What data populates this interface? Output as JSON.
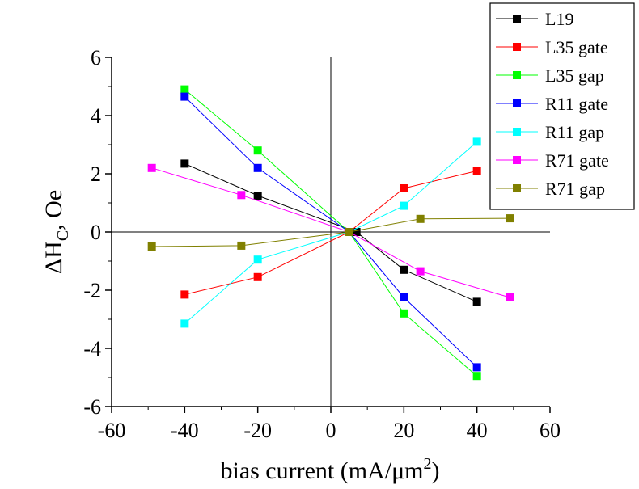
{
  "chart_data": {
    "type": "line",
    "title": "",
    "xlabel": {
      "main": "bias current (mA/μm",
      "sup": "2",
      "tail": ")"
    },
    "ylabel": {
      "delta": "ΔH",
      "sub": "C",
      "tail": ", Oe"
    },
    "xlim": [
      -60,
      60
    ],
    "ylim": [
      -6,
      6
    ],
    "xticks": [
      -60,
      -40,
      -20,
      0,
      20,
      40,
      60
    ],
    "yticks": [
      -6,
      -4,
      -2,
      0,
      2,
      4,
      6
    ],
    "xtick_labels": [
      "-60",
      "-40",
      "-20",
      "0",
      "20",
      "40",
      "60"
    ],
    "ytick_labels": [
      "-6",
      "-4",
      "-2",
      "0",
      "2",
      "4",
      "6"
    ],
    "zero_lines": true,
    "grid": false,
    "legend_position": "top-right",
    "series": [
      {
        "name": "L19",
        "color": "#000000",
        "x": [
          -40,
          -20,
          7,
          20,
          40
        ],
        "y": [
          2.35,
          1.25,
          0.0,
          -1.3,
          -2.4
        ]
      },
      {
        "name": "L35 gate",
        "color": "#ff0000",
        "x": [
          -40,
          -20,
          5,
          20,
          40
        ],
        "y": [
          -2.15,
          -1.55,
          0.0,
          1.5,
          2.1
        ]
      },
      {
        "name": "L35 gap",
        "color": "#00ff00",
        "x": [
          -40,
          -20,
          5,
          20,
          40
        ],
        "y": [
          4.9,
          2.8,
          0.0,
          -2.8,
          -4.95
        ]
      },
      {
        "name": "R11 gate",
        "color": "#0000ff",
        "x": [
          -40,
          -20,
          5,
          20,
          40
        ],
        "y": [
          4.65,
          2.2,
          0.0,
          -2.25,
          -4.65
        ]
      },
      {
        "name": "R11 gap",
        "color": "#00ffff",
        "x": [
          -40,
          -20,
          5,
          20,
          40
        ],
        "y": [
          -3.15,
          -0.95,
          0.0,
          0.9,
          3.1
        ]
      },
      {
        "name": "R71 gate",
        "color": "#ff00ff",
        "x": [
          -49,
          -24.5,
          5,
          24.5,
          49
        ],
        "y": [
          2.2,
          1.27,
          0.0,
          -1.35,
          -2.25
        ]
      },
      {
        "name": "R71 gap",
        "color": "#808000",
        "x": [
          -49,
          -24.5,
          5,
          24.5,
          49
        ],
        "y": [
          -0.5,
          -0.47,
          0.0,
          0.45,
          0.47
        ]
      }
    ]
  }
}
